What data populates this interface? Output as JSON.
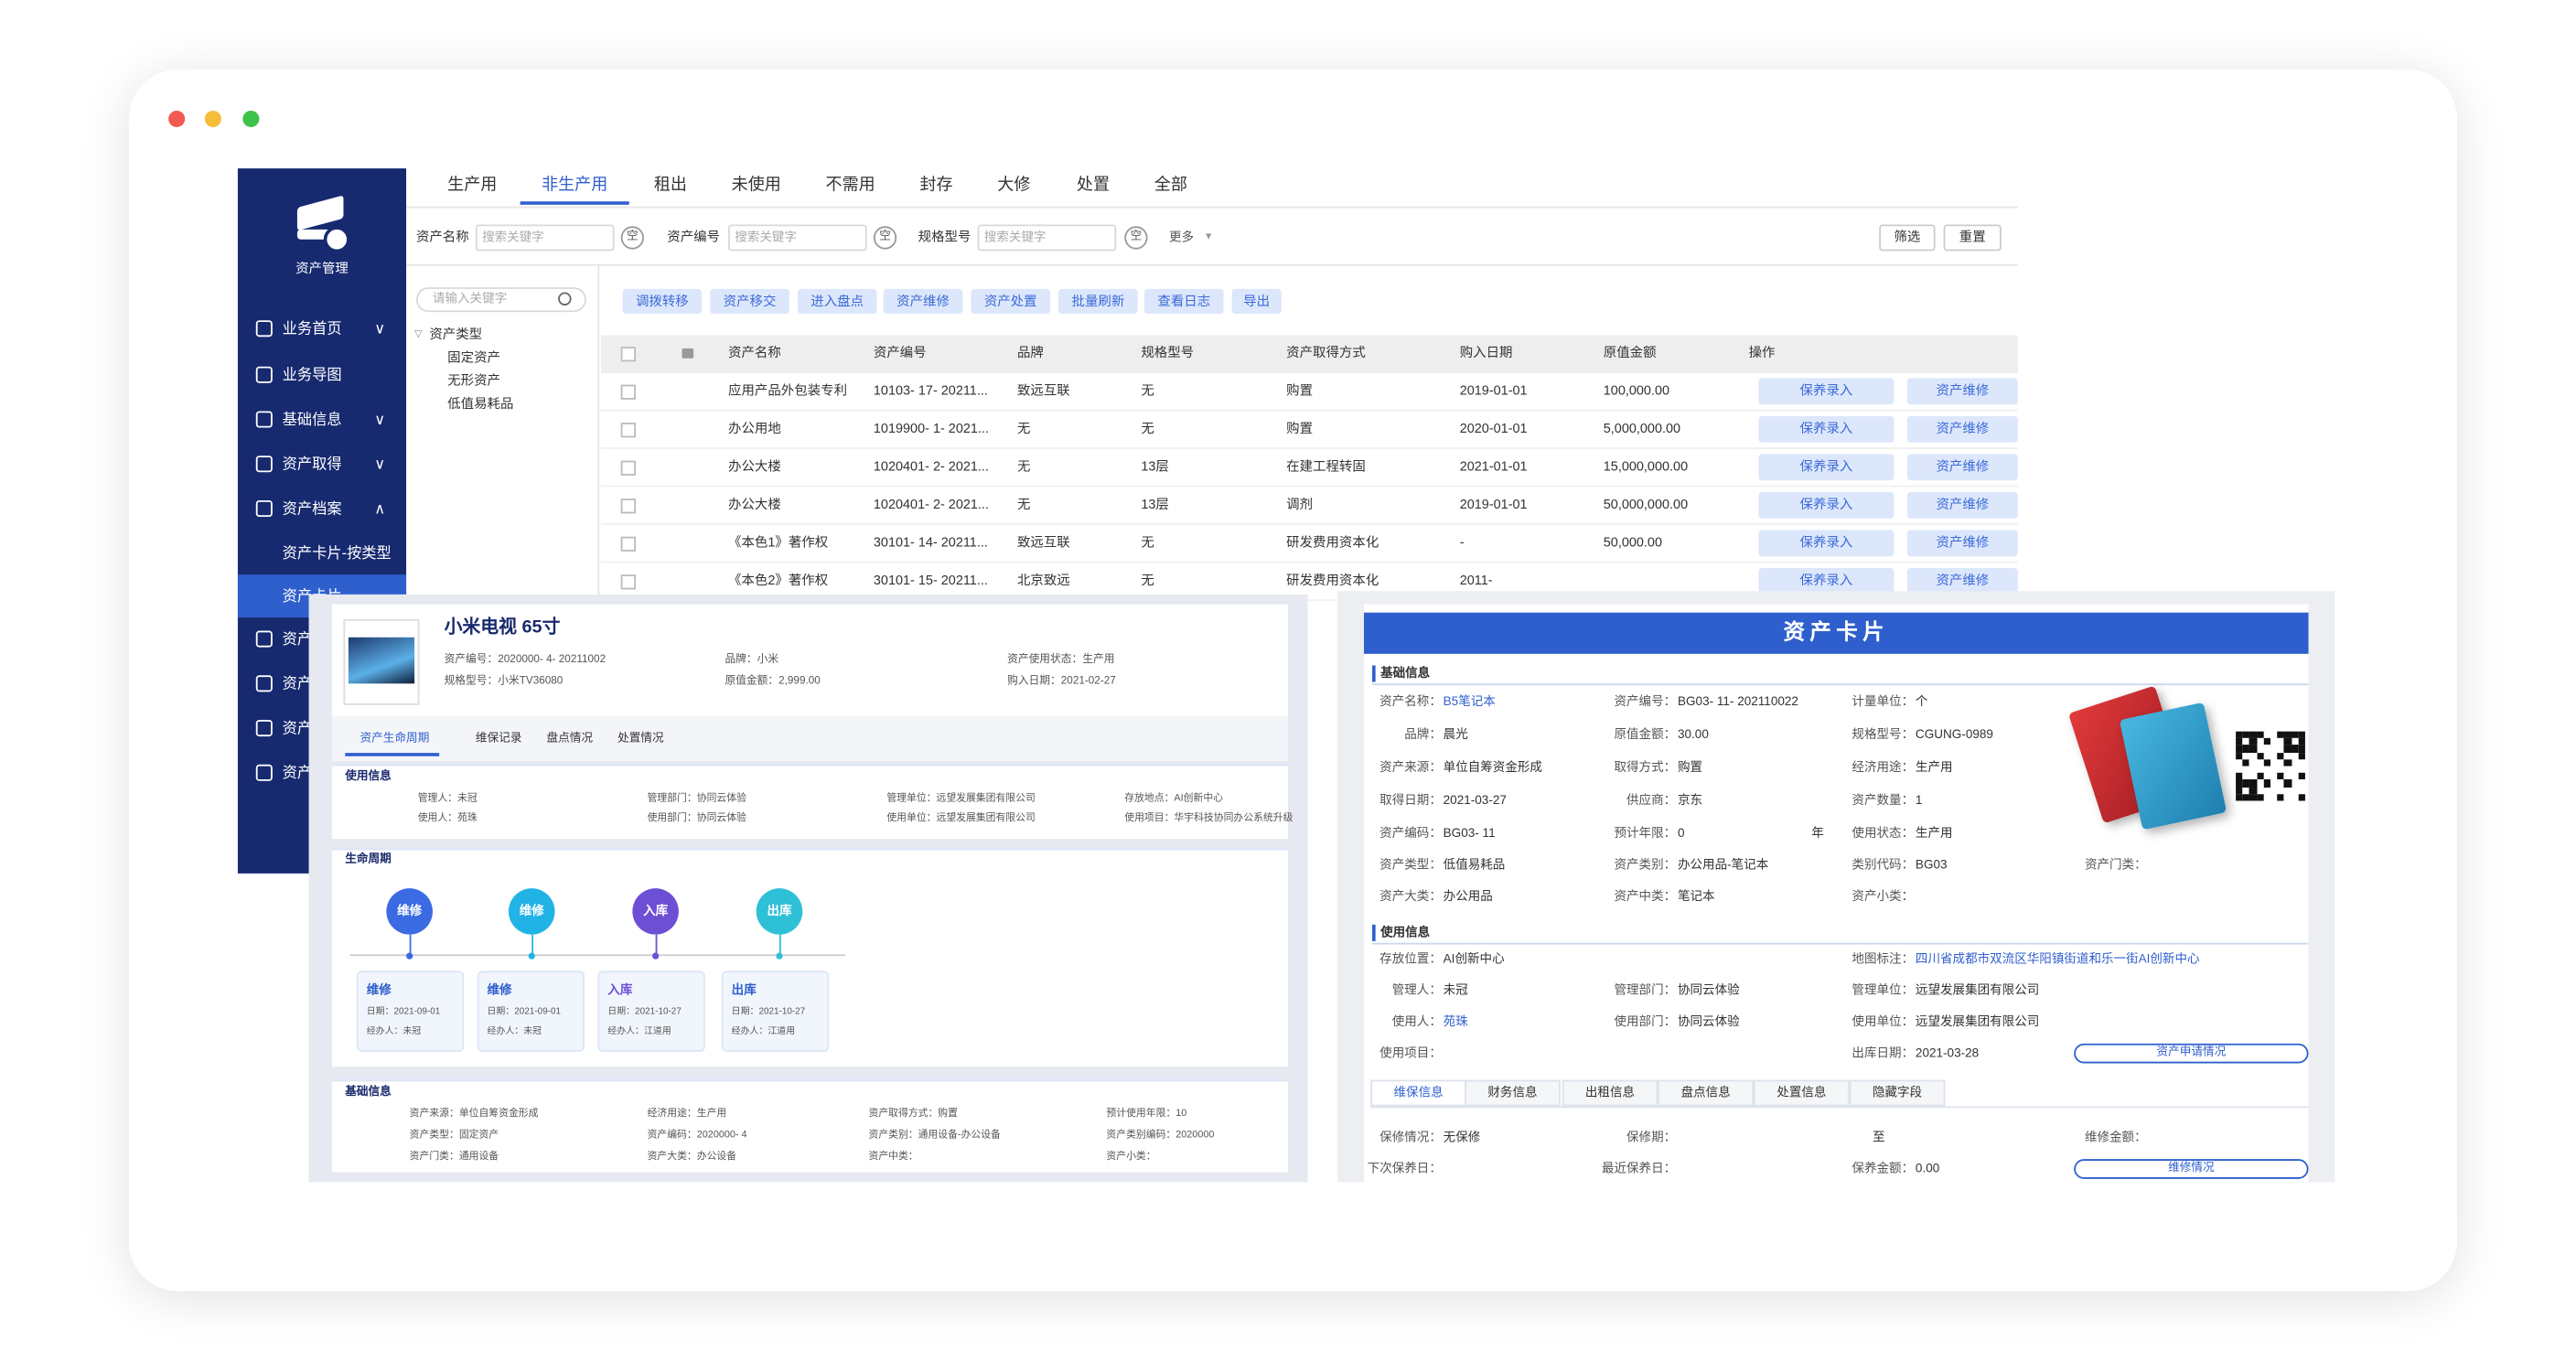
{
  "sidebar": {
    "title": "资产管理",
    "menu": [
      "业务首页",
      "业务导图",
      "基础信息",
      "资产取得",
      "资产档案",
      "资产卡片-按类型",
      "资产卡片",
      "资产",
      "资产",
      "资产",
      "资产"
    ],
    "active": 6
  },
  "tabs": {
    "items": [
      "生产用",
      "非生产用",
      "租出",
      "未使用",
      "不需用",
      "封存",
      "大修",
      "处置",
      "全部"
    ],
    "active": 1
  },
  "filters": {
    "fields": [
      {
        "label": "资产名称",
        "placeholder": "搜索关键字",
        "clear": "空"
      },
      {
        "label": "资产编号",
        "placeholder": "搜索关键字",
        "clear": "空"
      },
      {
        "label": "规格型号",
        "placeholder": "搜索关键字",
        "clear": "空"
      }
    ],
    "more": "更多",
    "buttons": [
      "筛选",
      "重置"
    ]
  },
  "tree": {
    "search": "请输入关键字",
    "root": "资产类型",
    "children": [
      "固定资产",
      "无形资产",
      "低值易耗品"
    ]
  },
  "toolbar": [
    "调拨转移",
    "资产移交",
    "进入盘点",
    "资产维修",
    "资产处置",
    "批量刷新",
    "查看日志",
    "导出"
  ],
  "table": {
    "columns": [
      "资产名称",
      "资产编号",
      "品牌",
      "规格型号",
      "资产取得方式",
      "购入日期",
      "原值金额",
      "操作"
    ],
    "rows": [
      [
        "应用产品外包装专利",
        "10103- 17- 20211...",
        "致远互联",
        "无",
        "购置",
        "2019-01-01",
        "100,000.00"
      ],
      [
        "办公用地",
        "1019900- 1- 2021...",
        "无",
        "无",
        "购置",
        "2020-01-01",
        "5,000,000.00"
      ],
      [
        "办公大楼",
        "1020401- 2- 2021...",
        "无",
        "13层",
        "在建工程转固",
        "2021-01-01",
        "15,000,000.00"
      ],
      [
        "办公大楼",
        "1020401- 2- 2021...",
        "无",
        "13层",
        "调剂",
        "2019-01-01",
        "50,000,000.00"
      ],
      [
        "《本色1》著作权",
        "30101- 14- 20211...",
        "致远互联",
        "无",
        "研发费用资本化",
        "-",
        "50,000.00"
      ],
      [
        "《本色2》著作权",
        "30101- 15- 20211...",
        "北京致远",
        "无",
        "研发费用资本化",
        "2011-"
      ]
    ],
    "actions": [
      "保养录入",
      "资产维修"
    ]
  },
  "detail": {
    "title": "小米电视 65寸",
    "summary": [
      "资产编号：2020000- 4- 20211002",
      "品牌：小米",
      "资产使用状态：生产用",
      "规格型号：小米TV36080",
      "原值金额：2,999.00",
      "购入日期：2021-02-27"
    ],
    "tabs": [
      "资产生命周期",
      "维保记录",
      "盘点情况",
      "处置情况"
    ],
    "usage": {
      "title": "使用信息",
      "fields": [
        "管理人：未冠",
        "管理部门：协同云体验",
        "管理单位：远望发展集团有限公司",
        "存放地点：AI创新中心",
        "使用人：苑珠",
        "使用部门：协同云体验",
        "使用单位：远望发展集团有限公司",
        "使用项目：华宇科技协同办公系统升级"
      ]
    },
    "lifecycle": {
      "title": "生命周期",
      "events": [
        {
          "type": "维修",
          "date": "日期：2021-09-01",
          "handler": "经办人：未冠"
        },
        {
          "type": "维修",
          "date": "日期：2021-09-01",
          "handler": "经办人：未冠"
        },
        {
          "type": "入库",
          "date": "日期：2021-10-27",
          "handler": "经办人：江道用"
        },
        {
          "type": "出库",
          "date": "日期：2021-10-27",
          "handler": "经办人：江道用"
        }
      ]
    },
    "basic": {
      "title": "基础信息",
      "fields": [
        "资产来源：单位自筹资金形成",
        "经济用途：生产用",
        "资产取得方式：购置",
        "预计使用年限：10",
        "资产类型：固定资产",
        "资产编码：2020000- 4",
        "资产类别：通用设备-办公设备",
        "资产类别编码：2020000",
        "资产门类：通用设备",
        "资产大类：办公设备",
        "资产中类：",
        "资产小类："
      ]
    }
  },
  "card": {
    "title": "资产卡片",
    "basic": {
      "title": "基础信息",
      "rows": [
        [
          {
            "label": "资产名称：",
            "value": "B5笔记本",
            "link": true
          },
          {
            "label": "资产编号：",
            "value": "BG03- 11- 202110022"
          },
          {
            "label": "计量单位：",
            "value": "个"
          }
        ],
        [
          {
            "label": "品牌：",
            "value": "晨光"
          },
          {
            "label": "原值金额：",
            "value": "30.00"
          },
          {
            "label": "规格型号：",
            "value": "CGUNG-0989"
          }
        ],
        [
          {
            "label": "资产来源：",
            "value": "单位自筹资金形成"
          },
          {
            "label": "取得方式：",
            "value": "购置"
          },
          {
            "label": "经济用途：",
            "value": "生产用"
          }
        ],
        [
          {
            "label": "取得日期：",
            "value": "2021-03-27"
          },
          {
            "label": "供应商：",
            "value": "京东"
          },
          {
            "label": "资产数量：",
            "value": "1"
          }
        ],
        [
          {
            "label": "资产编码：",
            "value": "BG03- 11"
          },
          {
            "label": "预计年限：",
            "value": "0",
            "unit": "年"
          },
          {
            "label": "使用状态：",
            "value": "生产用"
          }
        ],
        [
          {
            "label": "资产类型：",
            "value": "低值易耗品"
          },
          {
            "label": "资产类别：",
            "value": "办公用品-笔记本"
          },
          {
            "label": "类别代码：",
            "value": "BG03"
          },
          {
            "label": "资产门类："
          }
        ],
        [
          {
            "label": "资产大类：",
            "value": "办公用品"
          },
          {
            "label": "资产中类：",
            "value": "笔记本"
          },
          {
            "label": "资产小类："
          }
        ]
      ]
    },
    "usage": {
      "title": "使用信息",
      "rows": [
        [
          {
            "label": "存放位置：",
            "value": "AI创新中心"
          },
          {
            "label": "地图标注：",
            "value": "四川省成都市双流区华阳镇街道和乐一街AI创新中心",
            "link": true
          }
        ],
        [
          {
            "label": "管理人：",
            "value": "未冠"
          },
          {
            "label": "管理部门：",
            "value": "协同云体验"
          },
          {
            "label": "管理单位：",
            "value": "远望发展集团有限公司"
          }
        ],
        [
          {
            "label": "使用人：",
            "value": "苑珠",
            "link": true
          },
          {
            "label": "使用部门：",
            "value": "协同云体验"
          },
          {
            "label": "使用单位：",
            "value": "远望发展集团有限公司"
          }
        ],
        [
          {
            "label": "使用项目："
          },
          {
            "label": "出库日期：",
            "value": "2021-03-28"
          }
        ]
      ]
    },
    "apply_button": "资产申请情况",
    "tabs": [
      "维保信息",
      "财务信息",
      "出租信息",
      "盘点信息",
      "处置信息",
      "隐藏字段"
    ],
    "maintenance": {
      "rows": [
        [
          {
            "label": "保修情况：",
            "value": "无保修"
          },
          {
            "label": "保修期：",
            "unit": "至"
          },
          {
            "label": "维修金额："
          }
        ],
        [
          {
            "label": "下次保养日："
          },
          {
            "label": "最近保养日："
          },
          {
            "label": "保养金额：",
            "value": "0.00"
          }
        ]
      ]
    },
    "repair_button": "维修情况"
  }
}
